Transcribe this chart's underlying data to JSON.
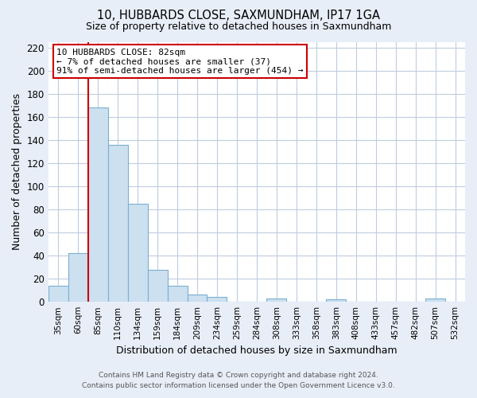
{
  "title": "10, HUBBARDS CLOSE, SAXMUNDHAM, IP17 1GA",
  "subtitle": "Size of property relative to detached houses in Saxmundham",
  "xlabel": "Distribution of detached houses by size in Saxmundham",
  "ylabel": "Number of detached properties",
  "bar_labels": [
    "35sqm",
    "60sqm",
    "85sqm",
    "110sqm",
    "134sqm",
    "159sqm",
    "184sqm",
    "209sqm",
    "234sqm",
    "259sqm",
    "284sqm",
    "308sqm",
    "333sqm",
    "358sqm",
    "383sqm",
    "408sqm",
    "433sqm",
    "457sqm",
    "482sqm",
    "507sqm",
    "532sqm"
  ],
  "bar_values": [
    14,
    42,
    168,
    136,
    85,
    28,
    14,
    6,
    4,
    0,
    0,
    3,
    0,
    0,
    2,
    0,
    0,
    0,
    0,
    3,
    0
  ],
  "bar_color": "#cce0f0",
  "bar_edge_color": "#7ab0d0",
  "vline_color": "#cc0000",
  "vline_x_bin": 2,
  "annotation_lines": [
    "10 HUBBARDS CLOSE: 82sqm",
    "← 7% of detached houses are smaller (37)",
    "91% of semi-detached houses are larger (454) →"
  ],
  "ylim": [
    0,
    225
  ],
  "yticks": [
    0,
    20,
    40,
    60,
    80,
    100,
    120,
    140,
    160,
    180,
    200,
    220
  ],
  "footer_line1": "Contains HM Land Registry data © Crown copyright and database right 2024.",
  "footer_line2": "Contains public sector information licensed under the Open Government Licence v3.0.",
  "bg_color": "#e8eef8",
  "plot_bg_color": "#ffffff",
  "grid_color": "#c0cce0"
}
